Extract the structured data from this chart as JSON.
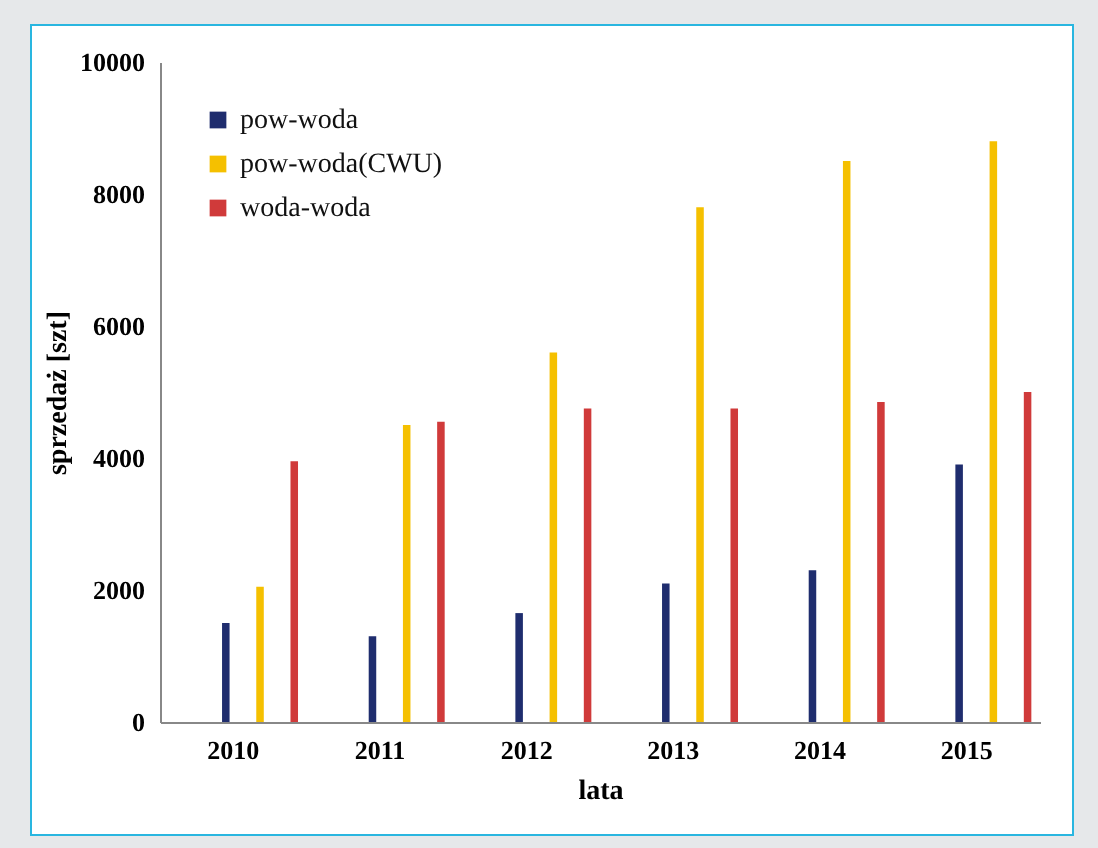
{
  "chart_data": {
    "type": "bar",
    "xlabel": "lata",
    "ylabel": "sprzedaż [szt]",
    "categories": [
      "2010",
      "2011",
      "2012",
      "2013",
      "2014",
      "2015"
    ],
    "series": [
      {
        "name": "pow-woda",
        "color": "#1f2d6e",
        "values": [
          1500,
          1300,
          1650,
          2100,
          2300,
          3900
        ]
      },
      {
        "name": "pow-woda(CWU)",
        "color": "#f5c000",
        "values": [
          2050,
          4500,
          5600,
          7800,
          8500,
          8800
        ]
      },
      {
        "name": "woda-woda",
        "color": "#d03a3a",
        "values": [
          3950,
          4550,
          4750,
          4750,
          4850,
          5000
        ]
      }
    ],
    "ylim": [
      0,
      10000
    ],
    "yticks": [
      0,
      2000,
      4000,
      6000,
      8000,
      10000
    ],
    "grid": false,
    "legend": "top left"
  }
}
